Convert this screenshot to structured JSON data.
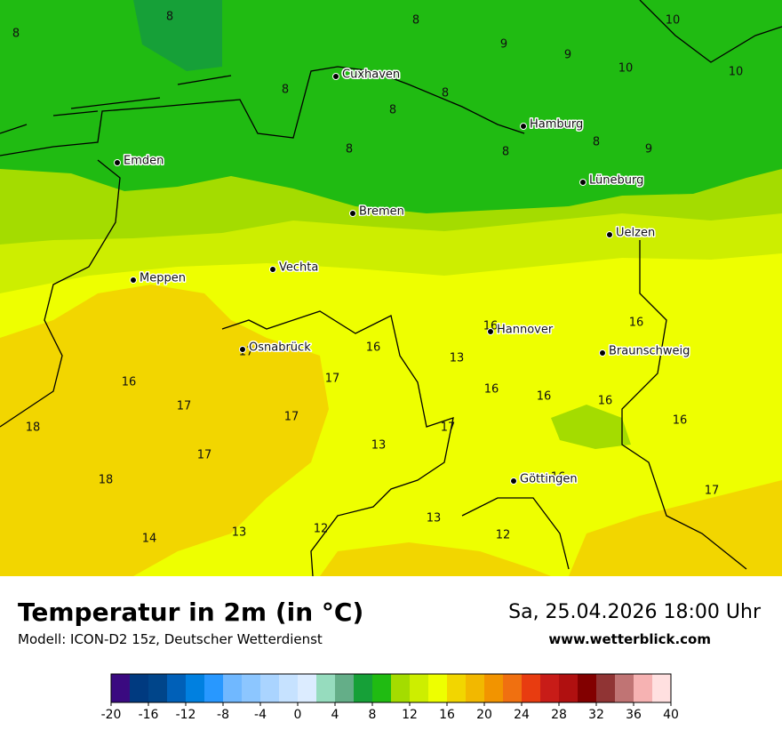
{
  "map": {
    "cities": [
      "Cuxhaven",
      "Hamburg",
      "Emden",
      "Lüneburg",
      "Bremen",
      "Uelzen",
      "Vechta",
      "Meppen",
      "Hannover",
      "Osnabrück",
      "Braunschweig",
      "Göttingen"
    ],
    "values": [
      8,
      8,
      8,
      9,
      9,
      10,
      10,
      10,
      8,
      8,
      8,
      8,
      8,
      8,
      9,
      16,
      16,
      16,
      13,
      17,
      16,
      17,
      16,
      16,
      16,
      17,
      17,
      16,
      18,
      17,
      13,
      17,
      16,
      18,
      17,
      13,
      12,
      13,
      12,
      14
    ]
  },
  "header": {
    "title": "Temperatur in 2m (in °C)",
    "subtitle": "Modell: ICON-D2 15z, Deutscher Wetterdienst",
    "date": "Sa, 25.04.2026 18:00 Uhr",
    "website": "www.wetterblick.com"
  },
  "colorbar": {
    "ticks": [
      -20,
      -16,
      -12,
      -8,
      -4,
      0,
      4,
      8,
      12,
      16,
      20,
      24,
      28,
      32,
      36,
      40
    ],
    "colors": [
      "#3a0a80",
      "#003a80",
      "#00458a",
      "#0060b8",
      "#0080e0",
      "#2898ff",
      "#70b8ff",
      "#8cc6ff",
      "#aad4ff",
      "#c6e2ff",
      "#dcecff",
      "#96dcbe",
      "#64ae88",
      "#16a038",
      "#20bb12",
      "#a4dc00",
      "#cdee00",
      "#eeff00",
      "#f2d600",
      "#f2b800",
      "#f29400",
      "#f07010",
      "#e83c10",
      "#c81c18",
      "#b01010",
      "#820000",
      "#903434",
      "#c07474",
      "#f6b2b2",
      "#ffe0e0"
    ]
  }
}
